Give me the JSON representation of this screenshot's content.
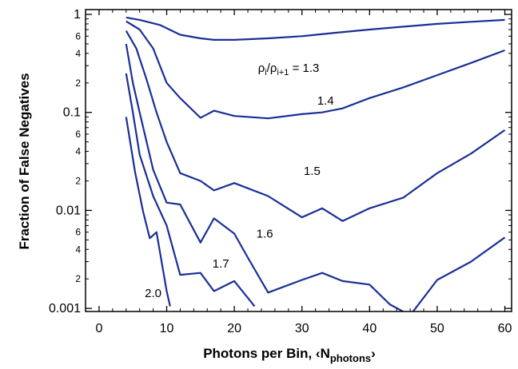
{
  "chart_data": {
    "type": "line",
    "xlabel": "Photons per Bin, ‹N",
    "xlabel_sub": "photons",
    "xlabel_end": "›",
    "ylabel": "Fraction of False Negatives",
    "xlim": [
      -2,
      61
    ],
    "ylim": [
      0.00093,
      1.12
    ],
    "y_scale": "log",
    "grid": false,
    "x_ticks": [
      0,
      10,
      20,
      30,
      40,
      50,
      60
    ],
    "x_tick_labels": [
      "0",
      "10",
      "20",
      "30",
      "40",
      "50",
      "60"
    ],
    "y_major_ticks": [
      0.001,
      0.01,
      0.1,
      1
    ],
    "y_major_labels": [
      "0.001",
      "0.01",
      "0.1",
      "1"
    ],
    "y_minor_labeled": [
      {
        "value": 0.002,
        "label": "2"
      },
      {
        "value": 0.004,
        "label": "4"
      },
      {
        "value": 0.006,
        "label": "6"
      },
      {
        "value": 0.02,
        "label": "2"
      },
      {
        "value": 0.04,
        "label": "4"
      },
      {
        "value": 0.06,
        "label": "6"
      },
      {
        "value": 0.2,
        "label": "2"
      },
      {
        "value": 0.4,
        "label": "4"
      },
      {
        "value": 0.6,
        "label": "6"
      }
    ],
    "line_color": "#1a2f96",
    "series": [
      {
        "label": "ρ",
        "label_parts": {
          "a": "ρ",
          "a_sub": "i",
          "slash": "/ρ",
          "b_sub": "i+1",
          "rest": " = 1.3"
        },
        "x": [
          4,
          6,
          9,
          12,
          15,
          17,
          20,
          25,
          30,
          35,
          40,
          45,
          50,
          55,
          60
        ],
        "y": [
          0.93,
          0.88,
          0.78,
          0.62,
          0.57,
          0.55,
          0.55,
          0.57,
          0.6,
          0.65,
          0.7,
          0.75,
          0.8,
          0.84,
          0.88
        ]
      },
      {
        "label": "1.4",
        "x": [
          4,
          6,
          8,
          10,
          12,
          15,
          17,
          20,
          25,
          30,
          33,
          36,
          40,
          45,
          50,
          55,
          60
        ],
        "y": [
          0.85,
          0.7,
          0.45,
          0.2,
          0.14,
          0.088,
          0.104,
          0.092,
          0.087,
          0.096,
          0.1,
          0.11,
          0.14,
          0.18,
          0.24,
          0.32,
          0.43
        ]
      },
      {
        "label": "1.5",
        "x": [
          4,
          5.5,
          7,
          8.5,
          10,
          12,
          15,
          17,
          20,
          25,
          30,
          33,
          36,
          40,
          45,
          50,
          55,
          60
        ],
        "y": [
          0.68,
          0.45,
          0.22,
          0.1,
          0.05,
          0.024,
          0.02,
          0.016,
          0.019,
          0.014,
          0.0085,
          0.0105,
          0.0078,
          0.0105,
          0.0135,
          0.024,
          0.038,
          0.066
        ]
      },
      {
        "label": "1.6",
        "x": [
          4,
          5,
          6,
          8,
          10,
          12,
          15,
          17,
          20,
          22,
          25,
          30,
          33,
          36,
          40,
          43,
          46,
          50,
          55,
          60
        ],
        "y": [
          0.5,
          0.2,
          0.1,
          0.026,
          0.012,
          0.0115,
          0.0047,
          0.0083,
          0.0058,
          0.0033,
          0.00145,
          0.00195,
          0.0023,
          0.0019,
          0.00175,
          0.0011,
          0.00085,
          0.00195,
          0.003,
          0.0053
        ]
      },
      {
        "label": "1.7",
        "x": [
          4,
          5,
          6,
          8,
          10,
          12,
          15,
          17,
          20,
          23
        ],
        "y": [
          0.25,
          0.1,
          0.037,
          0.014,
          0.007,
          0.0022,
          0.0023,
          0.0015,
          0.0019,
          0.00105
        ]
      },
      {
        "label": "2.0",
        "x": [
          4,
          5.3,
          6.5,
          7.5,
          8.5,
          10,
          10.5
        ],
        "y": [
          0.09,
          0.025,
          0.0098,
          0.0052,
          0.006,
          0.0015,
          0.00105
        ]
      }
    ]
  }
}
